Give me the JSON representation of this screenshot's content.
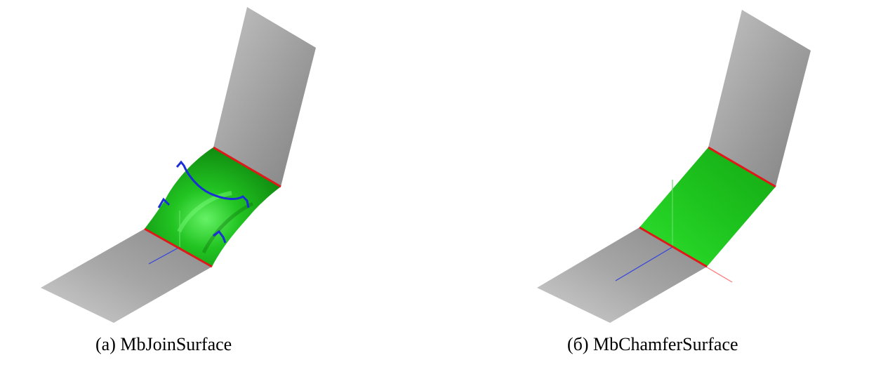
{
  "figures": [
    {
      "id": "a",
      "caption": "(a) MbJoinSurface",
      "surface_type": "join",
      "colors": {
        "plane": "#a8a8a8",
        "blend": "#1fb61f",
        "seam": "#e01818",
        "curve": "#1a2fd6",
        "axis_blue": "#3344dd",
        "axis_green": "#66dd66"
      }
    },
    {
      "id": "b",
      "caption": "(б) MbChamferSurface",
      "surface_type": "chamfer",
      "colors": {
        "plane": "#a8a8a8",
        "blend": "#1fc41f",
        "seam": "#e01818",
        "axis_blue": "#3344dd",
        "axis_green": "#66dd66",
        "axis_red": "#ff7777"
      }
    }
  ]
}
